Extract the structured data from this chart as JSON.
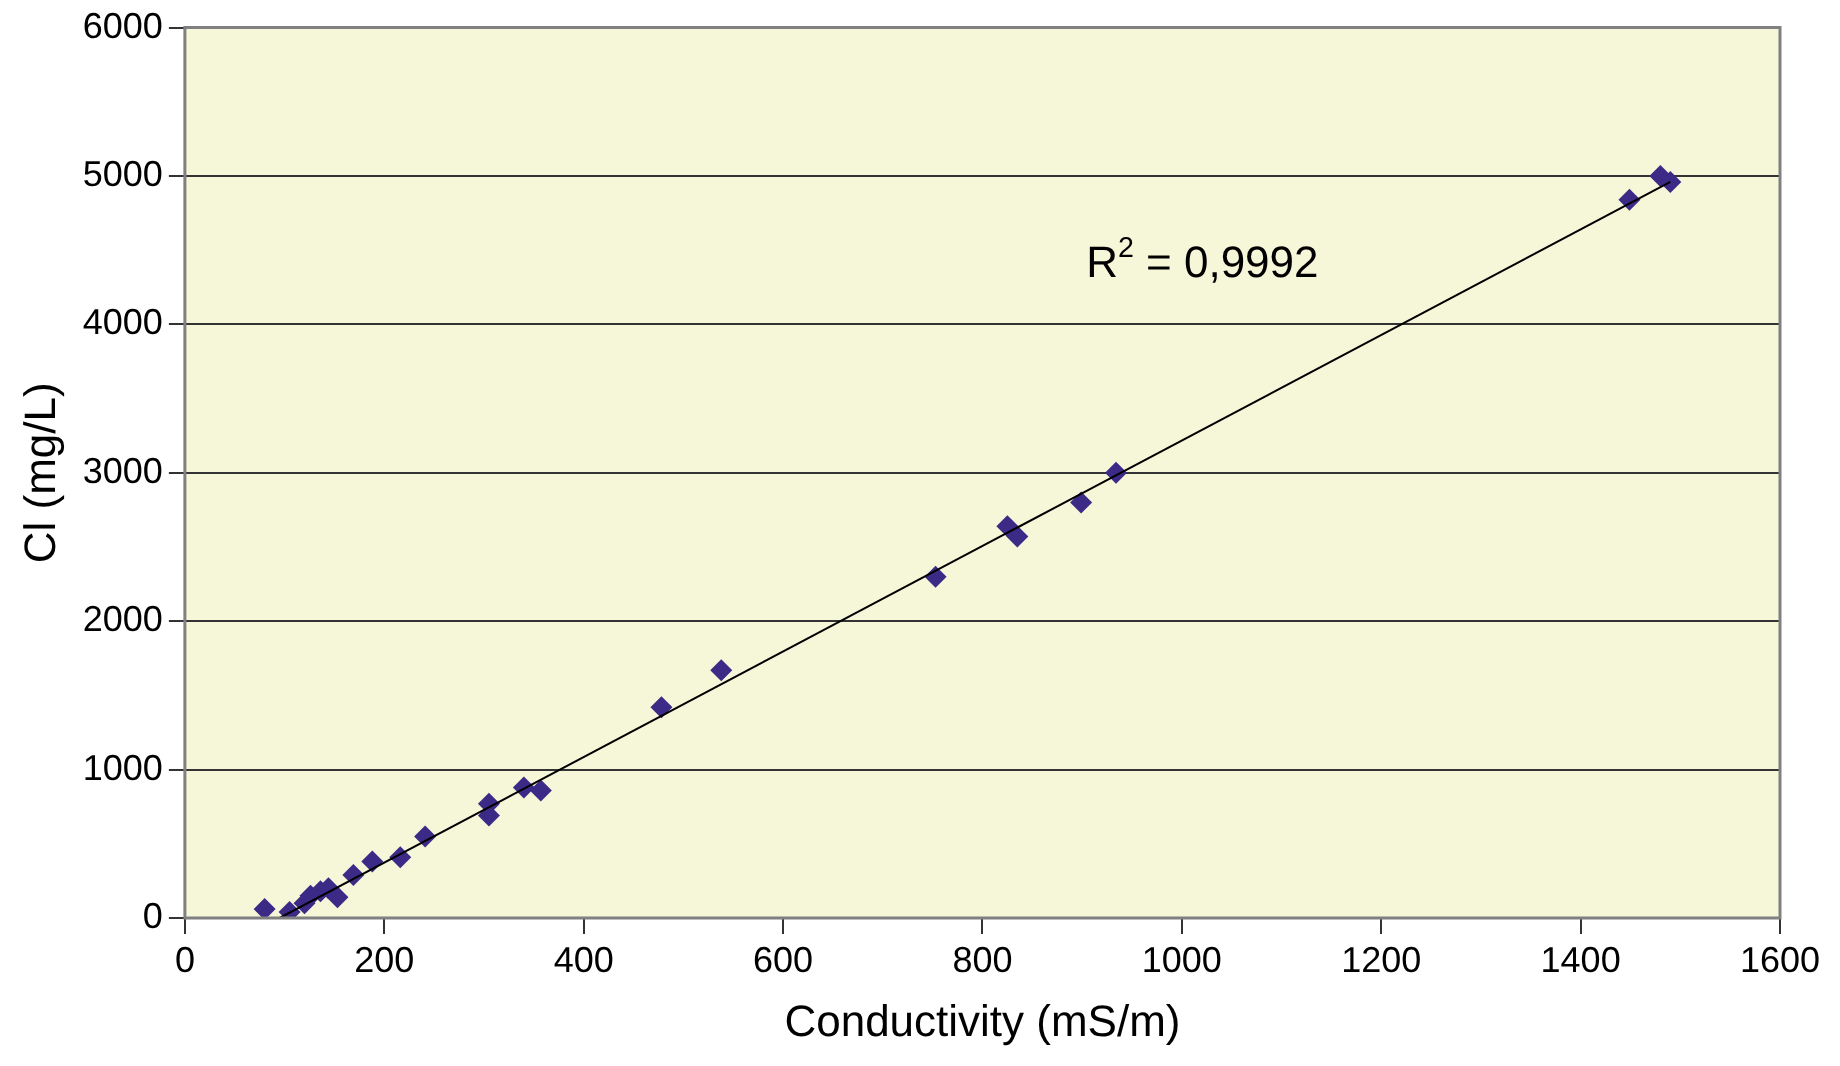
{
  "chart_data": {
    "type": "scatter",
    "xlabel": "Conductivity (mS/m)",
    "ylabel": "Cl (mg/L)",
    "xlim": [
      0,
      1600
    ],
    "xticks": [
      0,
      200,
      400,
      600,
      800,
      1000,
      1200,
      1400,
      1600
    ],
    "ylim": [
      0,
      6000
    ],
    "yticks": [
      0,
      1000,
      2000,
      3000,
      4000,
      5000,
      6000
    ],
    "grid": "y",
    "legend": false,
    "marker": "diamond",
    "annotations": [
      "R$^{2}$ = 0,9992"
    ],
    "series": [
      {
        "color": "#3b2a86",
        "x": [
          80,
          105,
          120,
          126,
          136,
          144,
          153,
          169,
          188,
          216,
          241,
          305,
          305,
          340,
          357,
          478,
          538,
          753,
          825,
          835,
          899,
          934,
          1449,
          1480,
          1490
        ],
        "values": [
          60,
          40,
          100,
          150,
          180,
          200,
          140,
          290,
          380,
          410,
          550,
          770,
          690,
          880,
          860,
          1420,
          1670,
          2300,
          2640,
          2570,
          2800,
          3000,
          4840,
          5000,
          4960
        ]
      },
      {
        "type": "line",
        "color": "#000000",
        "marker": "none",
        "x": [
          95,
          1490
        ],
        "values": [
          0,
          4960
        ]
      }
    ]
  }
}
